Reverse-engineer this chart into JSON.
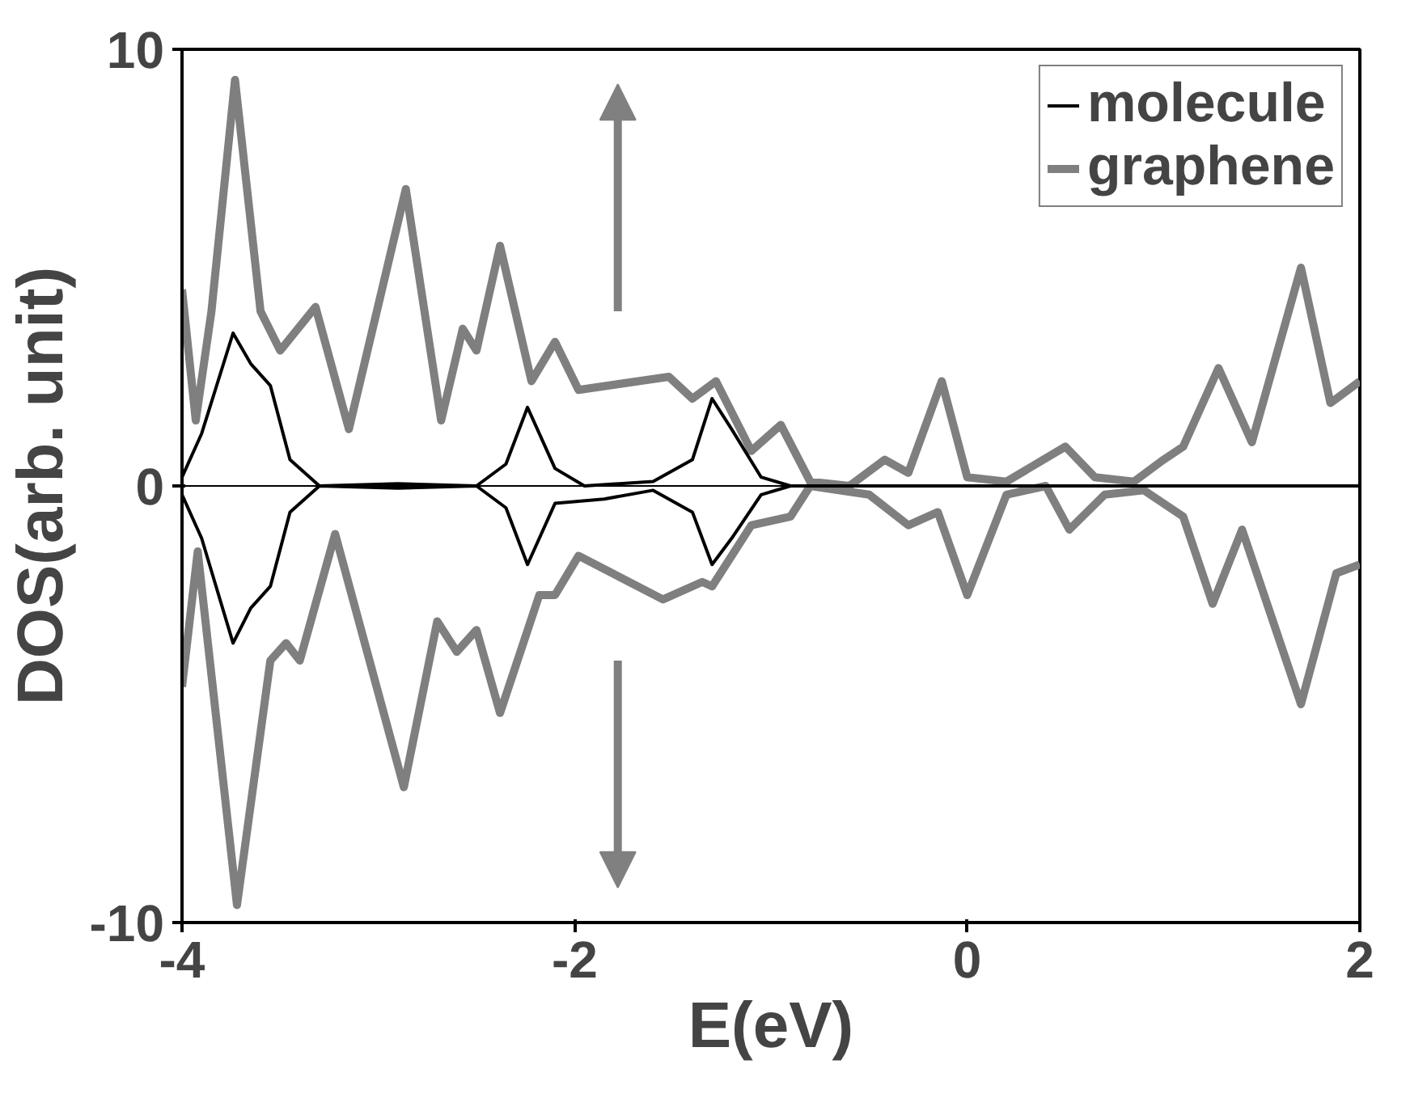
{
  "chart_data": {
    "type": "line",
    "xlabel": "E(eV)",
    "ylabel": "DOS(arb. unit)",
    "xlim": [
      -4,
      2
    ],
    "ylim": [
      -10,
      10
    ],
    "xticks": [
      -4,
      -2,
      0,
      2
    ],
    "yticks": [
      -10,
      0,
      10
    ],
    "grid": false,
    "ref_lines": [
      {
        "axis": "y",
        "value": 0,
        "color": "#000000",
        "line_style": "solid"
      }
    ],
    "legend": "top right",
    "marker": "none",
    "line_style": "solid",
    "series": [
      {
        "name": "graphene",
        "color": "#7f7f7f",
        "x": [
          -4.0,
          -3.93,
          -3.85,
          -3.73,
          -3.6,
          -3.5,
          -3.32,
          -3.15,
          -2.86,
          -2.68,
          -2.57,
          -2.5,
          -2.38,
          -2.22,
          -2.1,
          -1.98,
          -1.52,
          -1.4,
          -1.28,
          -1.1,
          -0.95,
          -0.8,
          -0.6,
          -0.42,
          -0.3,
          -0.13,
          0.0,
          0.2,
          0.5,
          0.65,
          0.85,
          1.0,
          1.1,
          1.28,
          1.45,
          1.7,
          1.85,
          2.0
        ],
        "values": [
          4.5,
          1.5,
          4.0,
          9.3,
          4.0,
          3.1,
          4.1,
          1.3,
          6.8,
          1.5,
          3.6,
          3.1,
          5.5,
          2.4,
          3.3,
          2.2,
          2.5,
          2.0,
          2.4,
          0.8,
          1.4,
          0.1,
          0.0,
          0.6,
          0.3,
          2.4,
          0.2,
          0.1,
          0.9,
          0.2,
          0.1,
          0.6,
          0.9,
          2.7,
          1.0,
          5.0,
          1.9,
          2.4
        ]
      },
      {
        "color": "#7f7f7f",
        "x": [
          -4.0,
          -3.92,
          -3.72,
          -3.55,
          -3.47,
          -3.4,
          -3.22,
          -2.87,
          -2.7,
          -2.6,
          -2.5,
          -2.38,
          -2.18,
          -2.1,
          -1.98,
          -1.55,
          -1.35,
          -1.3,
          -1.1,
          -0.9,
          -0.8,
          -0.5,
          -0.3,
          -0.15,
          0.0,
          0.2,
          0.4,
          0.52,
          0.7,
          0.9,
          1.1,
          1.25,
          1.4,
          1.7,
          1.88,
          2.0
        ],
        "values": [
          -4.6,
          -1.5,
          -9.6,
          -4.0,
          -3.6,
          -4.0,
          -1.1,
          -6.9,
          -3.1,
          -3.8,
          -3.3,
          -5.2,
          -2.5,
          -2.5,
          -1.6,
          -2.6,
          -2.2,
          -2.3,
          -0.9,
          -0.7,
          0.0,
          -0.2,
          -0.9,
          -0.6,
          -2.5,
          -0.2,
          0.0,
          -1.0,
          -0.2,
          -0.1,
          -0.7,
          -2.7,
          -1.0,
          -5.0,
          -2.0,
          -1.8
        ]
      },
      {
        "name": "molecule",
        "color": "#000000",
        "x": [
          -4.0,
          -3.9,
          -3.74,
          -3.65,
          -3.55,
          -3.45,
          -3.3,
          -2.9,
          -2.5,
          -2.35,
          -2.24,
          -2.1,
          -1.95,
          -1.6,
          -1.4,
          -1.3,
          -1.2,
          -1.05,
          -0.9,
          2.0
        ],
        "values": [
          0.2,
          1.2,
          3.5,
          2.8,
          2.3,
          0.6,
          0.0,
          0.05,
          0.0,
          0.5,
          1.8,
          0.4,
          0.0,
          0.1,
          0.6,
          2.0,
          1.3,
          0.2,
          0.0,
          0.0
        ]
      },
      {
        "color": "#000000",
        "x": [
          -4.0,
          -3.9,
          -3.74,
          -3.65,
          -3.55,
          -3.45,
          -3.3,
          -2.9,
          -2.5,
          -2.35,
          -2.24,
          -2.1,
          -1.85,
          -1.6,
          -1.4,
          -1.3,
          -1.2,
          -1.05,
          -0.9,
          2.0
        ],
        "values": [
          -0.2,
          -1.2,
          -3.6,
          -2.8,
          -2.3,
          -0.6,
          0.0,
          -0.05,
          0.0,
          -0.5,
          -1.8,
          -0.4,
          -0.3,
          -0.1,
          -0.6,
          -1.8,
          -1.2,
          -0.2,
          0.0,
          0.0
        ]
      }
    ]
  }
}
